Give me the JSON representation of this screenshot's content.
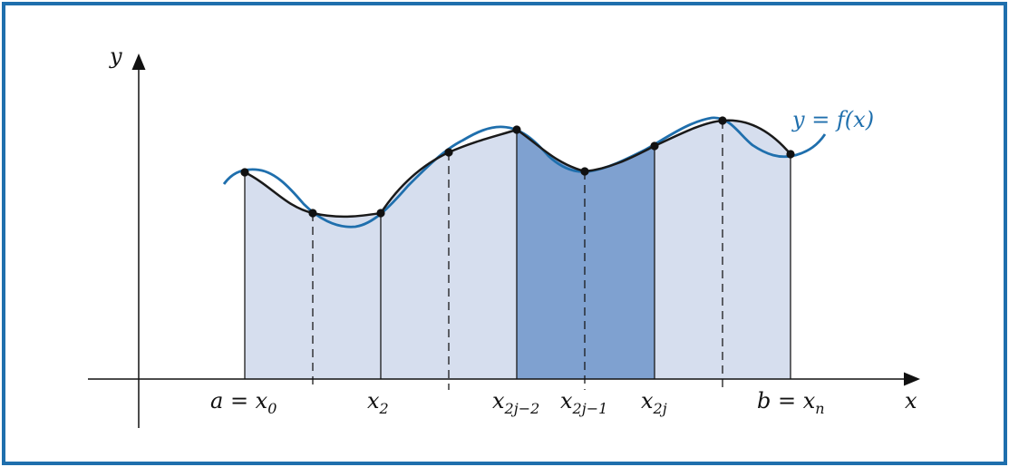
{
  "figure": {
    "axis_x_label": "x",
    "axis_y_label": "y",
    "curve_label": "y = f(x)",
    "tick_labels": [
      {
        "main": "a = x",
        "sub": "0"
      },
      {
        "main": "x",
        "sub": "2"
      },
      {
        "main": "x",
        "sub": "2j−2"
      },
      {
        "main": "x",
        "sub": "2j−1"
      },
      {
        "main": "x",
        "sub": "2j"
      },
      {
        "main": "b = x",
        "sub": "n"
      }
    ],
    "colors": {
      "frame": "#1f6fad",
      "curve": "#1f6fad",
      "light_fill": "#d6deee",
      "dark_fill": "#7fa1d0",
      "approx_line": "#1a1a1a"
    }
  }
}
